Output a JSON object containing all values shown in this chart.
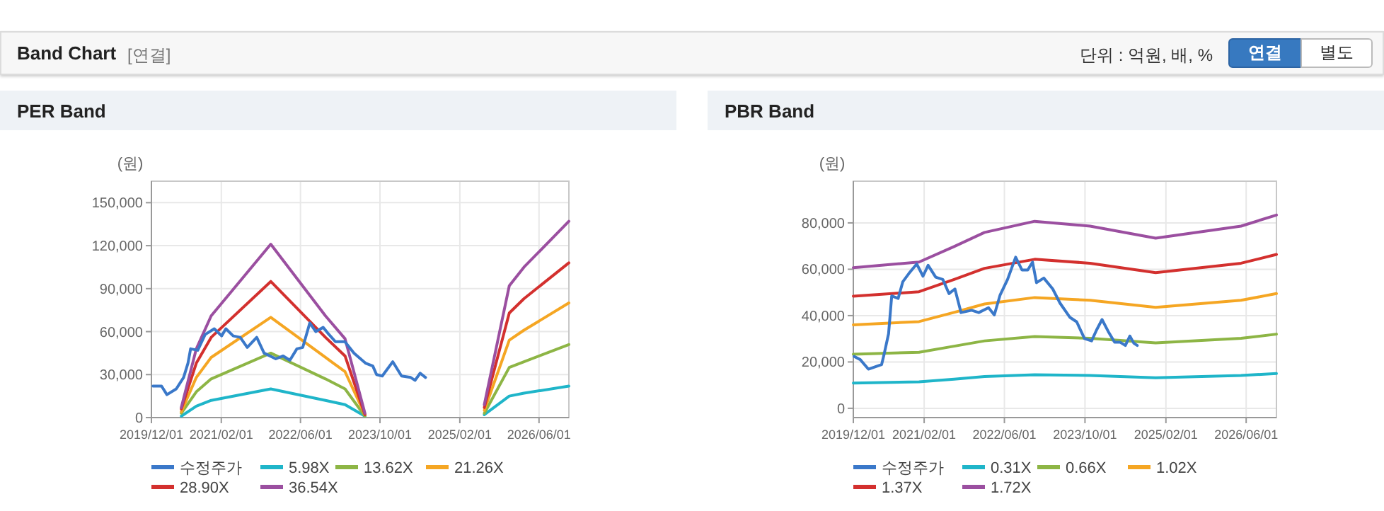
{
  "chart_data": [
    {
      "type": "other",
      "title": "Band Chart",
      "subtitle": "[연결]",
      "annotations": [
        "단위 : 억원, 배, %",
        "연결",
        "별도"
      ]
    },
    {
      "type": "line",
      "title": "PER Band",
      "ylabel": "(원)",
      "grid": true,
      "legend": "bottom",
      "xlim": [
        "2019-12-01",
        "2026-12-01"
      ],
      "xticks": [
        {
          "value": "2019-12-01",
          "label": "2019/12/01"
        },
        {
          "value": "2021-02-01",
          "label": "2021/02/01"
        },
        {
          "value": "2022-06-01",
          "label": "2022/06/01"
        },
        {
          "value": "2023-10-01",
          "label": "2023/10/01"
        },
        {
          "value": "2025-02-01",
          "label": "2025/02/01"
        },
        {
          "value": "2026-06-01",
          "label": "2026/06/01"
        }
      ],
      "ylim": [
        0,
        165000
      ],
      "yticks": [
        {
          "value": 0,
          "label": "0"
        },
        {
          "value": 30000,
          "label": "30,000"
        },
        {
          "value": 60000,
          "label": "60,000"
        },
        {
          "value": 90000,
          "label": "90,000"
        },
        {
          "value": 120000,
          "label": "120,000"
        },
        {
          "value": 150000,
          "label": "150,000"
        }
      ],
      "x": [
        "2020-06",
        "2020-09",
        "2020-12",
        "2021-12",
        "2022-11",
        "2023-03",
        "2023-07"
      ],
      "series": [
        {
          "name": "수정주가",
          "color": "#3a78c9",
          "x": [
            "2019-12-10",
            "2020-02-01",
            "2020-03-05",
            "2020-05-01",
            "2020-06-15",
            "2020-07-12",
            "2020-07-28",
            "2020-09-10",
            "2020-10-25",
            "2020-12-20",
            "2021-02-03",
            "2021-03-01",
            "2021-04-15",
            "2021-05-28",
            "2021-07-10",
            "2021-09-06",
            "2021-10-21",
            "2022-01-01",
            "2022-02-15",
            "2022-03-28",
            "2022-05-10",
            "2022-06-15",
            "2022-07-28",
            "2022-09-03",
            "2022-10-18",
            "2022-11-15",
            "2023-01-01",
            "2023-02-28",
            "2023-04-25",
            "2023-07-04",
            "2023-08-18",
            "2023-09-10",
            "2023-10-15",
            "2023-12-18",
            "2024-02-10",
            "2024-04-06",
            "2024-05-03",
            "2024-06-03",
            "2024-07-06"
          ],
          "values": [
            22000,
            22000,
            16000,
            20000,
            28000,
            38000,
            48000,
            47000,
            58000,
            62000,
            57000,
            62000,
            57000,
            56000,
            49000,
            56000,
            45000,
            41000,
            43000,
            40000,
            48000,
            49000,
            66000,
            60000,
            63000,
            59000,
            53000,
            53000,
            45000,
            38000,
            36000,
            30000,
            29000,
            39000,
            29000,
            28000,
            26000,
            31000,
            28000
          ]
        },
        {
          "name": "5.98X",
          "color": "#1fb5c9",
          "values": [
            1000,
            8000,
            12000,
            20000,
            12000,
            9000,
            1000
          ]
        },
        {
          "name": "13.62X",
          "color": "#8db545",
          "values": [
            3000,
            18000,
            27000,
            45000,
            27000,
            20000,
            1000
          ]
        },
        {
          "name": "21.26X",
          "color": "#f5a623",
          "values": [
            4000,
            28000,
            42000,
            70000,
            42000,
            32000,
            2000
          ]
        },
        {
          "name": "28.90X",
          "color": "#d3302e",
          "values": [
            6000,
            38000,
            56000,
            95000,
            56000,
            43000,
            2000
          ]
        },
        {
          "name": "36.54X",
          "color": "#9b4fa0",
          "values": [
            7000,
            48000,
            71000,
            121000,
            71000,
            55000,
            3000
          ]
        },
        {
          "color": "#1fb5c9",
          "x": [
            "2025-07",
            "2025-12",
            "2026-03",
            "2026-12"
          ],
          "values": [
            2000,
            15000,
            17000,
            22000
          ]
        },
        {
          "color": "#8db545",
          "x": [
            "2025-07",
            "2025-12",
            "2026-03",
            "2026-12"
          ],
          "values": [
            3000,
            35000,
            39000,
            51000
          ]
        },
        {
          "color": "#f5a623",
          "x": [
            "2025-07",
            "2025-12",
            "2026-03",
            "2026-12"
          ],
          "values": [
            5000,
            54000,
            61000,
            80000
          ]
        },
        {
          "color": "#d3302e",
          "x": [
            "2025-07",
            "2025-12",
            "2026-03",
            "2026-12"
          ],
          "values": [
            7000,
            73000,
            83000,
            108000
          ]
        },
        {
          "color": "#9b4fa0",
          "x": [
            "2025-07",
            "2025-12",
            "2026-03",
            "2026-12"
          ],
          "values": [
            9000,
            92000,
            105000,
            137000
          ]
        }
      ]
    },
    {
      "type": "line",
      "title": "PBR Band",
      "ylabel": "(원)",
      "grid": true,
      "legend": "bottom",
      "xlim": [
        "2019-12-01",
        "2026-12-01"
      ],
      "xticks": [
        {
          "value": "2019-12-01",
          "label": "2019/12/01"
        },
        {
          "value": "2021-02-01",
          "label": "2021/02/01"
        },
        {
          "value": "2022-06-01",
          "label": "2022/06/01"
        },
        {
          "value": "2023-10-01",
          "label": "2023/10/01"
        },
        {
          "value": "2025-02-01",
          "label": "2025/02/01"
        },
        {
          "value": "2026-06-01",
          "label": "2026/06/01"
        }
      ],
      "ylim": [
        -4000,
        98000
      ],
      "yticks": [
        {
          "value": 0,
          "label": "0"
        },
        {
          "value": 20000,
          "label": "20,000"
        },
        {
          "value": 40000,
          "label": "40,000"
        },
        {
          "value": 60000,
          "label": "60,000"
        },
        {
          "value": 80000,
          "label": "80,000"
        }
      ],
      "x": [
        "2019-12",
        "2021-01",
        "2021-08",
        "2022-02",
        "2022-12",
        "2023-11",
        "2024-12",
        "2026-05",
        "2026-12"
      ],
      "series": [
        {
          "name": "수정주가",
          "color": "#3a78c9",
          "x": [
            "2019-12-05",
            "2020-01-12",
            "2020-03-01",
            "2020-05-20",
            "2020-06-03",
            "2020-07-01",
            "2020-07-20",
            "2020-08-28",
            "2020-09-25",
            "2020-11-01",
            "2020-12-18",
            "2021-01-25",
            "2021-02-25",
            "2021-04-12",
            "2021-05-25",
            "2021-07-01",
            "2021-08-06",
            "2021-09-12",
            "2021-11-15",
            "2021-12-28",
            "2022-02-25",
            "2022-04-01",
            "2022-05-06",
            "2022-06-20",
            "2022-08-08",
            "2022-09-15",
            "2022-10-20",
            "2022-11-18",
            "2022-12-12",
            "2023-01-25",
            "2023-03-20",
            "2023-05-03",
            "2023-07-01",
            "2023-08-12",
            "2023-09-28",
            "2023-11-10",
            "2023-12-10",
            "2024-01-12",
            "2024-02-18",
            "2024-03-28",
            "2024-05-01",
            "2024-06-01",
            "2024-06-28",
            "2024-07-22",
            "2024-08-12"
          ],
          "values": [
            22400,
            21000,
            16900,
            18900,
            23000,
            32200,
            48500,
            47400,
            54600,
            58200,
            62300,
            57000,
            61700,
            56600,
            55600,
            49500,
            51500,
            41300,
            42300,
            41300,
            43400,
            40300,
            48900,
            55600,
            65200,
            59700,
            59700,
            63100,
            54200,
            56200,
            51500,
            45400,
            39300,
            37300,
            30100,
            29100,
            33800,
            38300,
            33200,
            28500,
            28500,
            27100,
            31200,
            28100,
            27100
          ]
        },
        {
          "name": "0.31X",
          "color": "#1fb5c9",
          "values": [
            10900,
            11400,
            12600,
            13700,
            14500,
            14200,
            13200,
            14200,
            15000
          ]
        },
        {
          "name": "0.66X",
          "color": "#8db545",
          "values": [
            23300,
            24200,
            26800,
            29100,
            31000,
            30200,
            28200,
            30200,
            32000
          ]
        },
        {
          "name": "1.02X",
          "color": "#f5a623",
          "values": [
            36000,
            37400,
            41400,
            45000,
            47800,
            46600,
            43600,
            46600,
            49500
          ]
        },
        {
          "name": "1.37X",
          "color": "#d3302e",
          "values": [
            48400,
            50300,
            55600,
            60400,
            64300,
            62600,
            58500,
            62600,
            66400
          ]
        },
        {
          "name": "1.72X",
          "color": "#9b4fa0",
          "values": [
            60700,
            63100,
            69800,
            75900,
            80700,
            78600,
            73400,
            78600,
            83400
          ]
        }
      ]
    }
  ]
}
